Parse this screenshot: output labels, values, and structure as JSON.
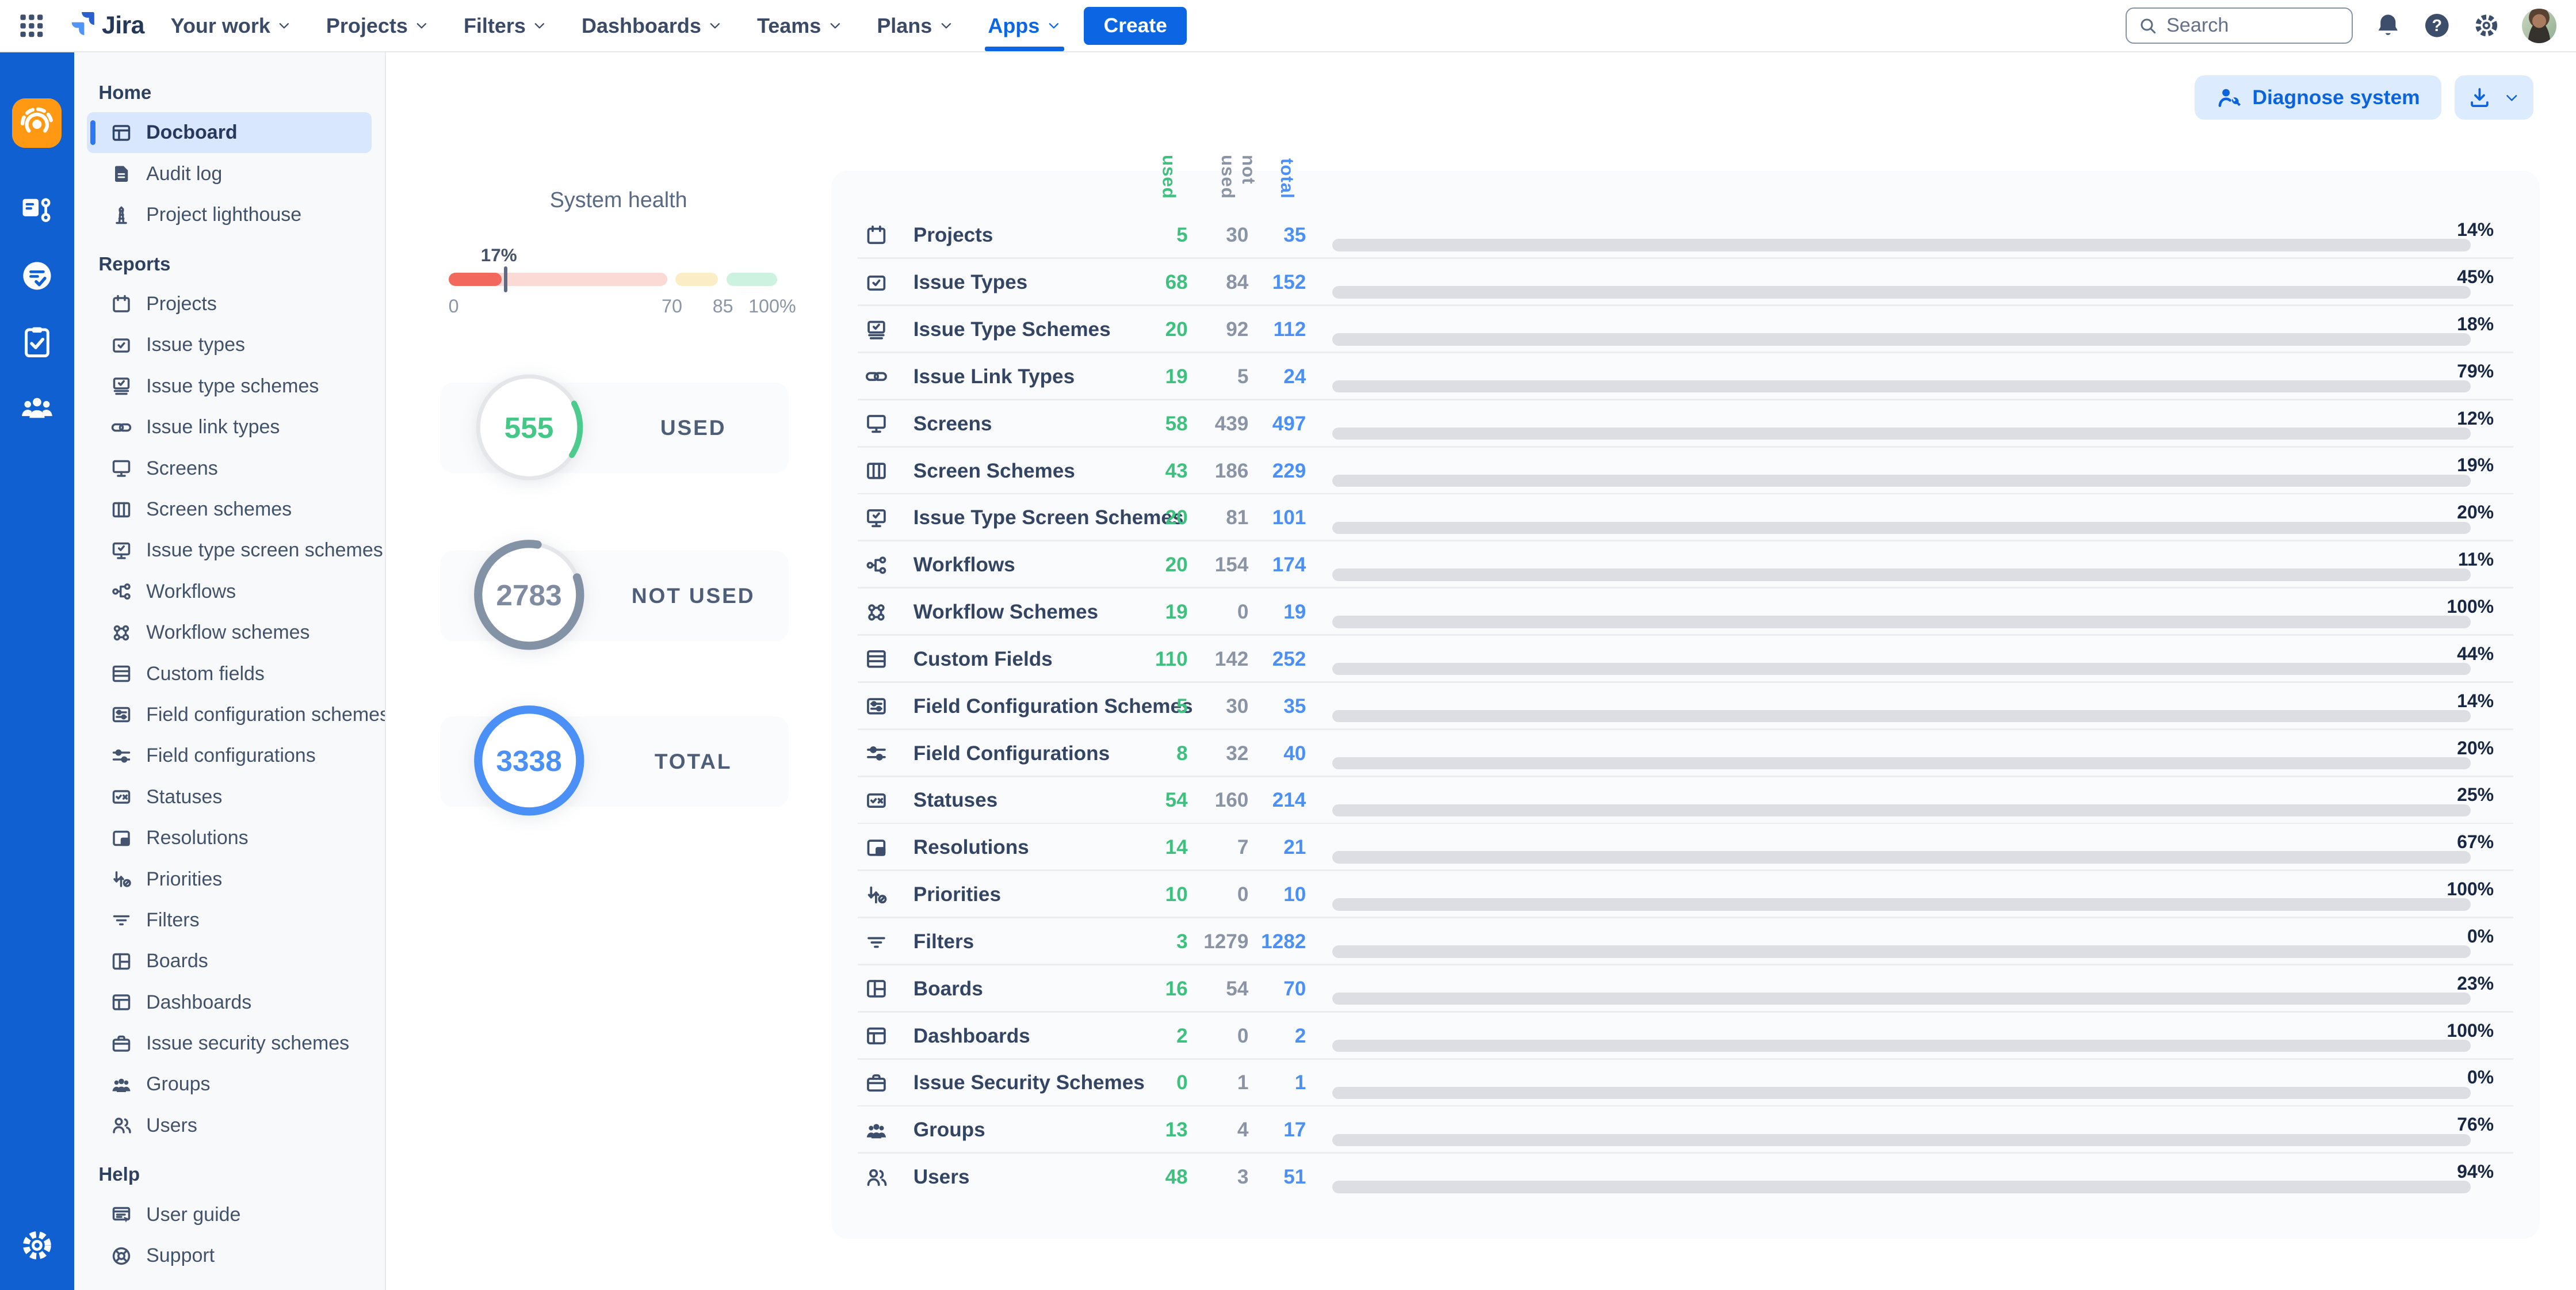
{
  "topnav": {
    "logo_text": "Jira",
    "items": [
      {
        "label": "Your work"
      },
      {
        "label": "Projects"
      },
      {
        "label": "Filters"
      },
      {
        "label": "Dashboards"
      },
      {
        "label": "Teams"
      },
      {
        "label": "Plans"
      },
      {
        "label": "Apps",
        "active": true
      }
    ],
    "create_label": "Create",
    "search_placeholder": "Search"
  },
  "rail": {
    "items": [
      {
        "icon": "app-docboard",
        "tile": true
      },
      {
        "icon": "app-workflow-doc"
      },
      {
        "icon": "app-checklist"
      },
      {
        "icon": "app-clipboard"
      },
      {
        "icon": "app-team"
      }
    ],
    "settings_icon": "settings-gear"
  },
  "sidebar": {
    "sections": [
      {
        "title": "Home",
        "items": [
          {
            "label": "Docboard",
            "icon": "dashboard",
            "selected": true
          },
          {
            "label": "Audit log",
            "icon": "doc"
          },
          {
            "label": "Project lighthouse",
            "icon": "lighthouse"
          }
        ]
      },
      {
        "title": "Reports",
        "items": [
          {
            "label": "Projects",
            "icon": "calendar"
          },
          {
            "label": "Issue types",
            "icon": "checkbox"
          },
          {
            "label": "Issue type schemes",
            "icon": "stack-check"
          },
          {
            "label": "Issue link types",
            "icon": "link"
          },
          {
            "label": "Screens",
            "icon": "monitor"
          },
          {
            "label": "Screen schemes",
            "icon": "columns"
          },
          {
            "label": "Issue type screen schemes",
            "icon": "monitor-check"
          },
          {
            "label": "Workflows",
            "icon": "workflow"
          },
          {
            "label": "Workflow schemes",
            "icon": "workflow-scheme"
          },
          {
            "label": "Custom fields",
            "icon": "table"
          },
          {
            "label": "Field configuration schemes",
            "icon": "sliders-box"
          },
          {
            "label": "Field configurations",
            "icon": "sliders"
          },
          {
            "label": "Statuses",
            "icon": "status"
          },
          {
            "label": "Resolutions",
            "icon": "resolution"
          },
          {
            "label": "Priorities",
            "icon": "priority"
          },
          {
            "label": "Filters",
            "icon": "filter"
          },
          {
            "label": "Boards",
            "icon": "board"
          },
          {
            "label": "Dashboards",
            "icon": "dashboard"
          },
          {
            "label": "Issue security schemes",
            "icon": "briefcase"
          },
          {
            "label": "Groups",
            "icon": "groups"
          },
          {
            "label": "Users",
            "icon": "users"
          }
        ]
      },
      {
        "title": "Help",
        "items": [
          {
            "label": "User guide",
            "icon": "guide"
          },
          {
            "label": "Support",
            "icon": "support"
          }
        ]
      }
    ]
  },
  "actions": {
    "diagnose_label": "Diagnose system"
  },
  "system_health": {
    "title": "System health",
    "value": "17%",
    "ticks": {
      "t0": "0",
      "t70": "70",
      "t85": "85",
      "t100": "100%"
    }
  },
  "stats": {
    "used": {
      "value": "555",
      "label": "USED",
      "color": "#4ccb8c"
    },
    "not_used": {
      "value": "2783",
      "label": "NOT USED",
      "color": "#8492a6"
    },
    "total": {
      "value": "3338",
      "label": "TOTAL",
      "color": "#4a90f6"
    }
  },
  "table": {
    "columns": {
      "used": "used",
      "not_used": "not used",
      "total": "total"
    },
    "rows": [
      {
        "label": "Projects",
        "icon": "calendar",
        "used": "5",
        "not_used": "30",
        "total": "35",
        "percent": 14,
        "percent_label": "14%",
        "bar_color": "#f3685c"
      },
      {
        "label": "Issue Types",
        "icon": "checkbox",
        "used": "68",
        "not_used": "84",
        "total": "152",
        "percent": 45,
        "percent_label": "45%",
        "bar_color": "#f3685c"
      },
      {
        "label": "Issue Type Schemes",
        "icon": "stack-check",
        "used": "20",
        "not_used": "92",
        "total": "112",
        "percent": 18,
        "percent_label": "18%",
        "bar_color": "#f3685c"
      },
      {
        "label": "Issue Link Types",
        "icon": "link",
        "used": "19",
        "not_used": "5",
        "total": "24",
        "percent": 79,
        "percent_label": "79%",
        "bar_color": "#f2c94c"
      },
      {
        "label": "Screens",
        "icon": "monitor",
        "used": "58",
        "not_used": "439",
        "total": "497",
        "percent": 12,
        "percent_label": "12%",
        "bar_color": "#f3685c"
      },
      {
        "label": "Screen Schemes",
        "icon": "columns",
        "used": "43",
        "not_used": "186",
        "total": "229",
        "percent": 19,
        "percent_label": "19%",
        "bar_color": "#f3685c"
      },
      {
        "label": "Issue Type Screen Schemes",
        "icon": "monitor-check",
        "used": "20",
        "not_used": "81",
        "total": "101",
        "percent": 20,
        "percent_label": "20%",
        "bar_color": "#f3685c"
      },
      {
        "label": "Workflows",
        "icon": "workflow",
        "used": "20",
        "not_used": "154",
        "total": "174",
        "percent": 11,
        "percent_label": "11%",
        "bar_color": "#f3685c"
      },
      {
        "label": "Workflow Schemes",
        "icon": "workflow-scheme",
        "used": "19",
        "not_used": "0",
        "total": "19",
        "percent": 100,
        "percent_label": "100%",
        "bar_color": "#4ccb8c"
      },
      {
        "label": "Custom Fields",
        "icon": "table",
        "used": "110",
        "not_used": "142",
        "total": "252",
        "percent": 44,
        "percent_label": "44%",
        "bar_color": "#f3685c"
      },
      {
        "label": "Field Configuration Schemes",
        "icon": "sliders-box",
        "used": "5",
        "not_used": "30",
        "total": "35",
        "percent": 14,
        "percent_label": "14%",
        "bar_color": "#f3685c"
      },
      {
        "label": "Field Configurations",
        "icon": "sliders",
        "used": "8",
        "not_used": "32",
        "total": "40",
        "percent": 20,
        "percent_label": "20%",
        "bar_color": "#f3685c"
      },
      {
        "label": "Statuses",
        "icon": "status",
        "used": "54",
        "not_used": "160",
        "total": "214",
        "percent": 25,
        "percent_label": "25%",
        "bar_color": "#f3685c"
      },
      {
        "label": "Resolutions",
        "icon": "resolution",
        "used": "14",
        "not_used": "7",
        "total": "21",
        "percent": 67,
        "percent_label": "67%",
        "bar_color": "#f3685c"
      },
      {
        "label": "Priorities",
        "icon": "priority",
        "used": "10",
        "not_used": "0",
        "total": "10",
        "percent": 100,
        "percent_label": "100%",
        "bar_color": "#4ccb8c"
      },
      {
        "label": "Filters",
        "icon": "filter",
        "used": "3",
        "not_used": "1279",
        "total": "1282",
        "percent": 0,
        "percent_label": "0%",
        "bar_color": "#dcdee3"
      },
      {
        "label": "Boards",
        "icon": "board",
        "used": "16",
        "not_used": "54",
        "total": "70",
        "percent": 23,
        "percent_label": "23%",
        "bar_color": "#f3685c"
      },
      {
        "label": "Dashboards",
        "icon": "dashboard",
        "used": "2",
        "not_used": "0",
        "total": "2",
        "percent": 100,
        "percent_label": "100%",
        "bar_color": "#4ccb8c"
      },
      {
        "label": "Issue Security Schemes",
        "icon": "briefcase",
        "used": "0",
        "not_used": "1",
        "total": "1",
        "percent": 0,
        "percent_label": "0%",
        "bar_color": "#dcdee3"
      },
      {
        "label": "Groups",
        "icon": "groups",
        "used": "13",
        "not_used": "4",
        "total": "17",
        "percent": 76,
        "percent_label": "76%",
        "bar_color": "#f2c94c"
      },
      {
        "label": "Users",
        "icon": "users",
        "used": "48",
        "not_used": "3",
        "total": "51",
        "percent": 94,
        "percent_label": "94%",
        "bar_color": "#4ccb8c"
      }
    ]
  }
}
